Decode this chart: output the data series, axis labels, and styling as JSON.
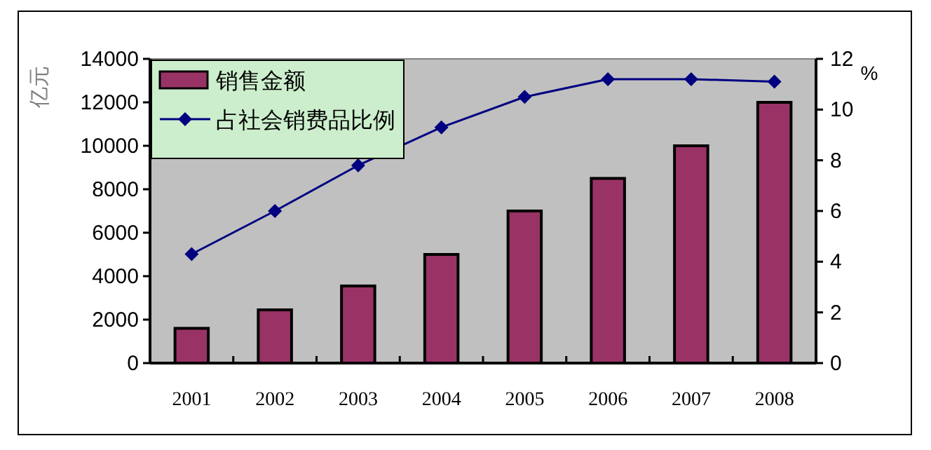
{
  "chart_data": {
    "type": "bar",
    "ylabel": "亿元",
    "y2label": "%",
    "categories": [
      "2001",
      "2002",
      "2003",
      "2004",
      "2005",
      "2006",
      "2007",
      "2008"
    ],
    "series": [
      {
        "name": "销售金额",
        "color": "#993366",
        "values": [
          1600,
          2450,
          3550,
          5000,
          7000,
          8500,
          10000,
          12000
        ]
      },
      {
        "name": "占社会销费品比例",
        "type": "line",
        "axis": "y2",
        "color": "#000080",
        "marker": "diamond",
        "values": [
          4.3,
          6.0,
          7.8,
          9.3,
          10.5,
          11.2,
          11.2,
          11.1
        ]
      }
    ],
    "ylim": [
      0,
      14000
    ],
    "yticks": [
      0,
      2000,
      4000,
      6000,
      8000,
      10000,
      12000,
      14000
    ],
    "y2lim": [
      0,
      12
    ],
    "y2ticks": [
      0,
      2,
      4,
      6,
      8,
      10,
      12
    ],
    "legend": "top left",
    "grid": false
  }
}
